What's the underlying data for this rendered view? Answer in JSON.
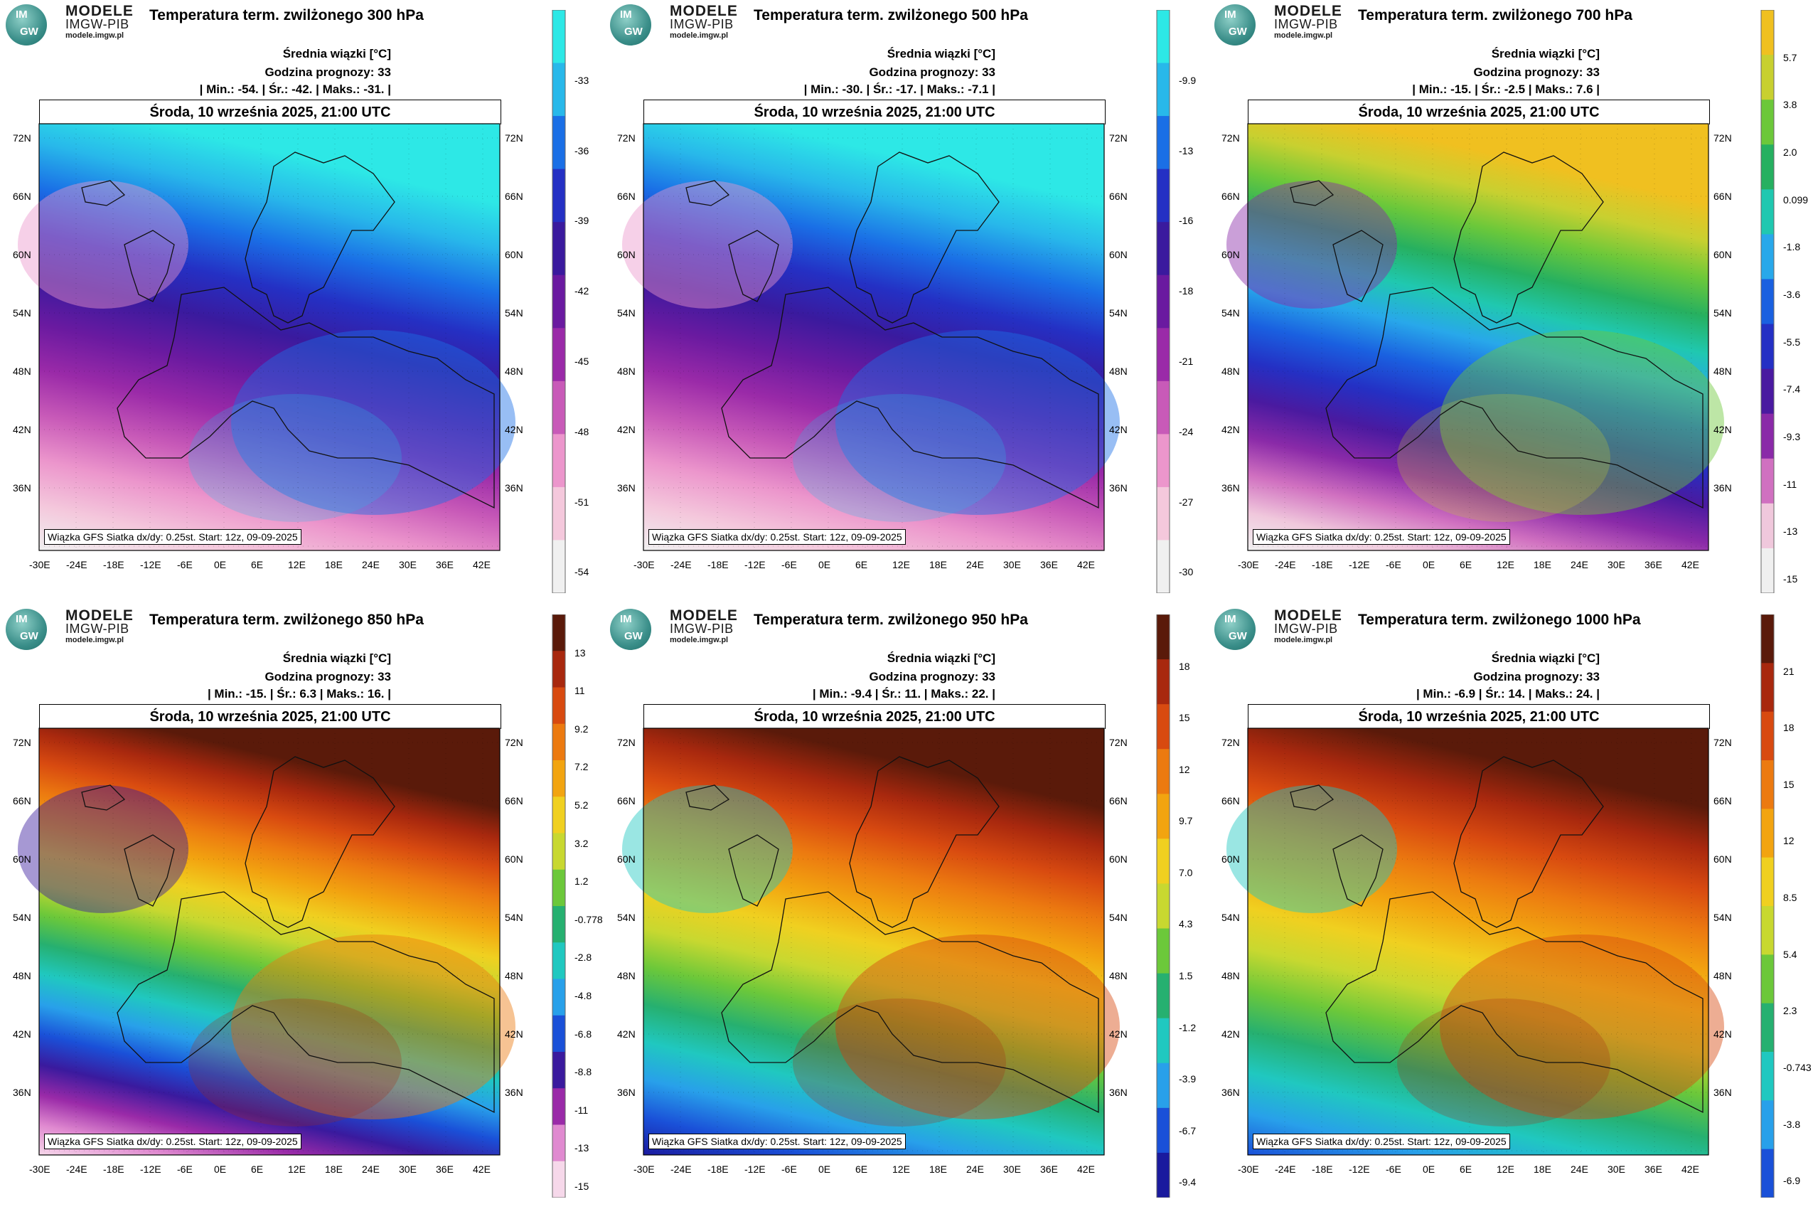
{
  "brand": {
    "line1": "MODELE",
    "line2": "IMGW-PIB",
    "line3": "modele.imgw.pl",
    "logo_top": "IM",
    "logo_bottom": "GW"
  },
  "common": {
    "title_prefix": "Temperatura term. zwilżonego",
    "subtitle": "Średnia wiązki [°C]",
    "forecast_hour": "Godzina prognozy: 33",
    "date": "Środa, 10 września 2025, 21:00 UTC",
    "footer": "Wiązka GFS Siatka dx/dy: 0.25st. Start: 12z, 09-09-2025",
    "lat_labels": [
      "72N",
      "66N",
      "60N",
      "54N",
      "48N",
      "42N",
      "36N"
    ],
    "lon_labels": [
      "-30E",
      "-24E",
      "-18E",
      "-12E",
      "-6E",
      "0E",
      "6E",
      "12E",
      "18E",
      "24E",
      "30E",
      "36E",
      "42E"
    ]
  },
  "panels": [
    {
      "level": "300 hPa",
      "stats": "| Min.: -54. | Śr.: -42. | Maks.: -31. |",
      "colorbar": [
        "-33",
        "-36",
        "-39",
        "-42",
        "-45",
        "-48",
        "-51",
        "-54"
      ],
      "palette": [
        "#2de8e6",
        "#28b8ea",
        "#1a6fe6",
        "#2430c4",
        "#3a1a9e",
        "#6a1aa0",
        "#9a2aa8",
        "#c85ab8",
        "#ec96cc",
        "#f4c8dc",
        "#f0f0f0"
      ]
    },
    {
      "level": "500 hPa",
      "stats": "| Min.: -30. | Śr.: -17. | Maks.: -7.1 |",
      "colorbar": [
        "-9.9",
        "-13",
        "-16",
        "-18",
        "-21",
        "-24",
        "-27",
        "-30"
      ],
      "palette": [
        "#2de8e6",
        "#28b8ea",
        "#1a6fe6",
        "#2430c4",
        "#3a1a9e",
        "#6a1aa0",
        "#9a2aa8",
        "#c85ab8",
        "#ec96cc",
        "#f4c8dc",
        "#f0f0f0"
      ]
    },
    {
      "level": "700 hPa",
      "stats": "| Min.: -15. | Śr.: -2.5 | Maks.: 7.6 |",
      "colorbar": [
        "5.7",
        "3.8",
        "2.0",
        "0.099",
        "-1.8",
        "-3.6",
        "-5.5",
        "-7.4",
        "-9.3",
        "-11",
        "-13",
        "-15"
      ],
      "palette": [
        "#f0c020",
        "#c8d030",
        "#6cc83a",
        "#26b060",
        "#20c8b0",
        "#28a8ea",
        "#1a60e0",
        "#2430c4",
        "#4a1aa0",
        "#8a2aa8",
        "#d070c0",
        "#f0c8dc",
        "#f0f0f0"
      ]
    },
    {
      "level": "850 hPa",
      "stats": "| Min.: -15. | Śr.: 6.3 | Maks.: 16. |",
      "colorbar": [
        "13",
        "11",
        "9.2",
        "7.2",
        "5.2",
        "3.2",
        "1.2",
        "-0.778",
        "-2.8",
        "-4.8",
        "-6.8",
        "-8.8",
        "-11",
        "-13",
        "-15"
      ],
      "palette": [
        "#5a1a0a",
        "#a8280e",
        "#d84a10",
        "#ec7a10",
        "#f2a410",
        "#f0d020",
        "#c8d830",
        "#6cc83a",
        "#26b070",
        "#20c8c0",
        "#28a0ea",
        "#1a50d8",
        "#3a1a9e",
        "#9a2aa8",
        "#e08ad0",
        "#f6d8ea"
      ]
    },
    {
      "level": "950 hPa",
      "stats": "| Min.: -9.4 | Śr.: 11. | Maks.: 22. |",
      "colorbar": [
        "18",
        "15",
        "12",
        "9.7",
        "7.0",
        "4.3",
        "1.5",
        "-1.2",
        "-3.9",
        "-6.7",
        "-9.4"
      ],
      "palette": [
        "#5a1a0a",
        "#a8280e",
        "#d84a10",
        "#ec7a10",
        "#f2a410",
        "#f0d020",
        "#c8d830",
        "#6cc83a",
        "#26b070",
        "#20c8c0",
        "#28a0ea",
        "#1a50d8",
        "#1a1a9e"
      ]
    },
    {
      "level": "1000 hPa",
      "stats": "| Min.: -6.9 | Śr.: 14. | Maks.: 24. |",
      "colorbar": [
        "21",
        "18",
        "15",
        "12",
        "8.5",
        "5.4",
        "2.3",
        "-0.743",
        "-3.8",
        "-6.9"
      ],
      "palette": [
        "#5a1a0a",
        "#a8280e",
        "#d84a10",
        "#ec7a10",
        "#f2a410",
        "#f0d020",
        "#c8d830",
        "#6cc83a",
        "#26b070",
        "#20c8c0",
        "#28a0ea",
        "#1a50d8"
      ]
    }
  ]
}
